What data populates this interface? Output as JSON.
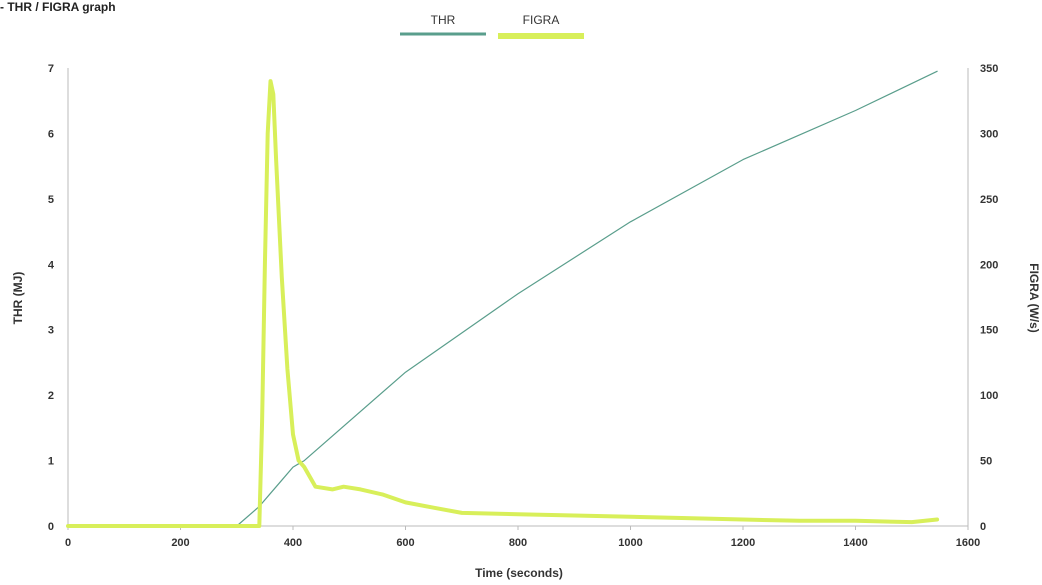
{
  "chart_data": {
    "type": "line",
    "title": "- THR / FIGRA graph",
    "xlabel": "Time (seconds)",
    "ylabel_left": "THR (MJ)",
    "ylabel_right": "FIGRA (W/s)",
    "xlim": [
      0,
      1600
    ],
    "ylim_left": [
      0,
      7
    ],
    "ylim_right": [
      0,
      350
    ],
    "x_ticks": [
      0,
      200,
      400,
      600,
      800,
      1000,
      1200,
      1400,
      1600
    ],
    "y_ticks_left": [
      0,
      1,
      2,
      3,
      4,
      5,
      6,
      7
    ],
    "y_ticks_right": [
      0,
      50,
      100,
      150,
      200,
      250,
      300,
      350
    ],
    "legend_position": "top-center",
    "grid": false,
    "colors": {
      "THR": "#5a9e8c",
      "FIGRA": "#d8ef5a",
      "axis": "#bbbbbb"
    },
    "series": [
      {
        "name": "THR",
        "axis": "left",
        "x": [
          300,
          340,
          360,
          380,
          400,
          410,
          420,
          600,
          800,
          1000,
          1200,
          1400,
          1545
        ],
        "y": [
          0,
          0.3,
          0.5,
          0.7,
          0.9,
          0.95,
          1.0,
          2.35,
          3.55,
          4.65,
          5.6,
          6.35,
          6.95
        ]
      },
      {
        "name": "FIGRA",
        "axis": "right",
        "x": [
          0,
          340,
          345,
          350,
          355,
          360,
          365,
          370,
          380,
          390,
          400,
          410,
          420,
          440,
          470,
          490,
          520,
          560,
          600,
          650,
          700,
          800,
          900,
          1000,
          1100,
          1200,
          1300,
          1400,
          1500,
          1545
        ],
        "y": [
          0,
          0,
          80,
          200,
          300,
          340,
          330,
          280,
          190,
          120,
          70,
          50,
          45,
          30,
          28,
          30,
          28,
          24,
          18,
          14,
          10,
          9,
          8,
          7,
          6,
          5,
          4,
          4,
          3,
          5
        ]
      }
    ]
  }
}
